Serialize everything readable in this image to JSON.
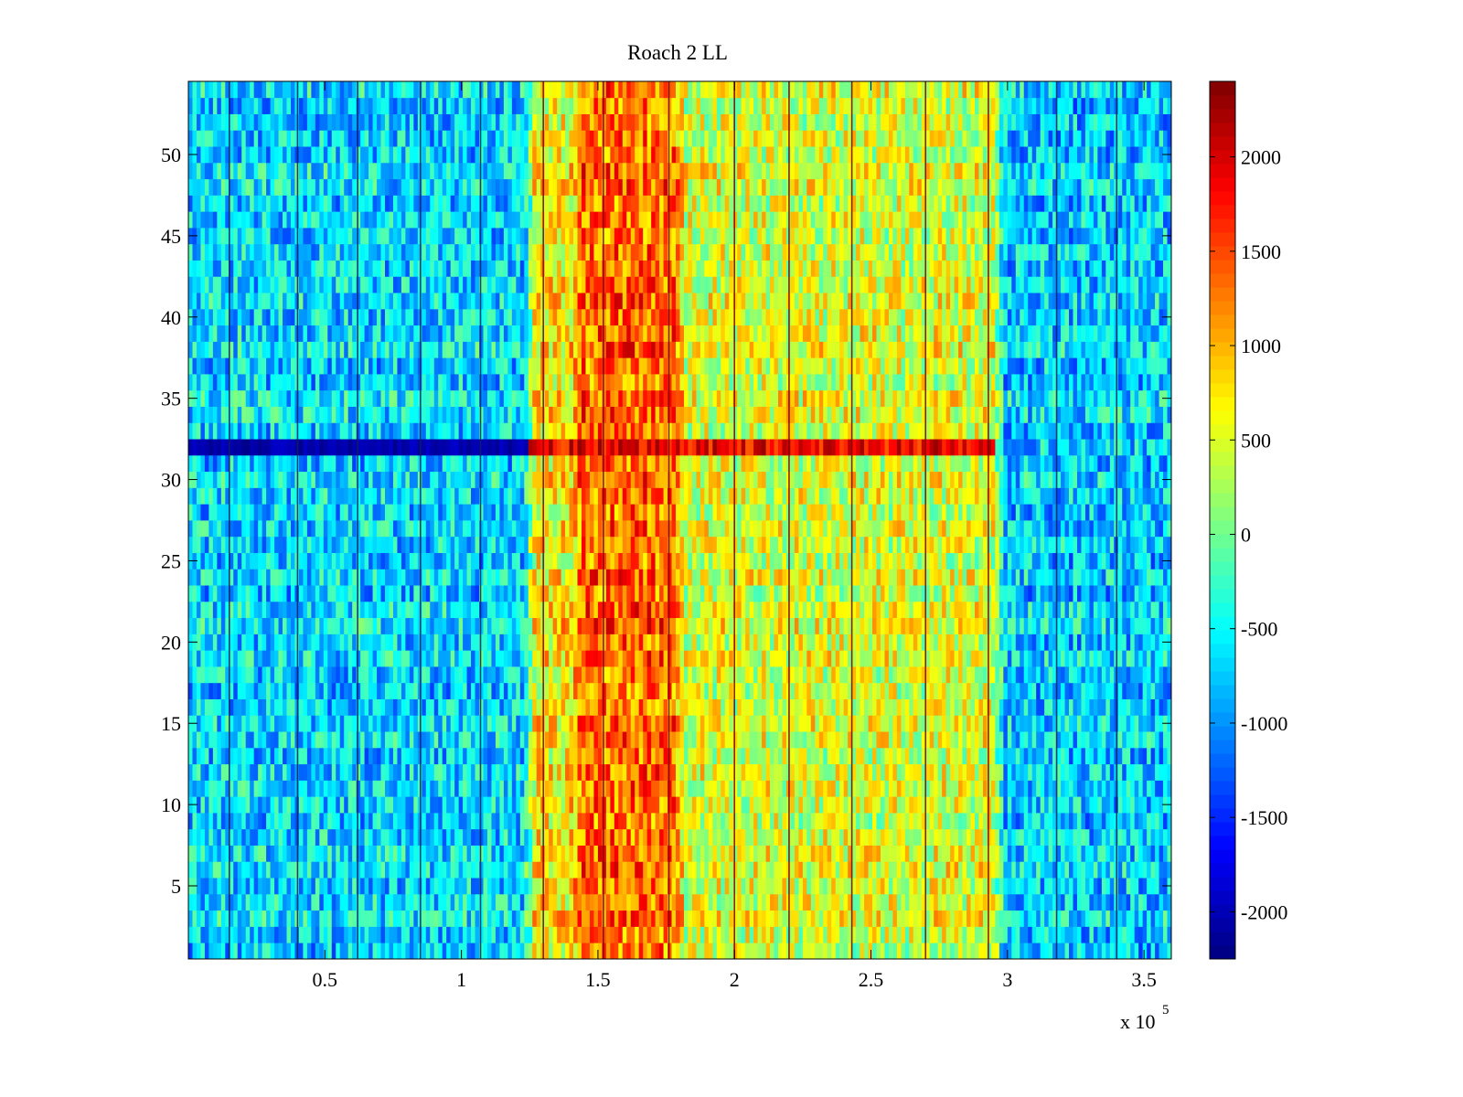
{
  "chart_data": {
    "type": "heatmap",
    "title": "Roach 2 LL",
    "xlabel": "",
    "ylabel": "",
    "x_exponent_label": {
      "base": "x 10",
      "exponent": "5"
    },
    "xlim": [
      0,
      3.6
    ],
    "ylim": [
      0.5,
      54.5
    ],
    "x_ticks": [
      0.5,
      1,
      1.5,
      2,
      2.5,
      3,
      3.5
    ],
    "x_tick_labels": [
      "0.5",
      "1",
      "1.5",
      "2",
      "2.5",
      "3",
      "3.5"
    ],
    "y_ticks": [
      5,
      10,
      15,
      20,
      25,
      30,
      35,
      40,
      45,
      50
    ],
    "y_tick_labels": [
      "5",
      "10",
      "15",
      "20",
      "25",
      "30",
      "35",
      "40",
      "45",
      "50"
    ],
    "rows": 54,
    "grid": false,
    "colormap": "jet",
    "clim": [
      -2250,
      2400
    ],
    "colorbar": {
      "placement": "right",
      "ticks": [
        -2000,
        -1500,
        -1000,
        -500,
        0,
        500,
        1000,
        1500,
        2000
      ],
      "tick_labels": [
        "-2000",
        "-1500",
        "-1000",
        "-500",
        "0",
        "500",
        "1000",
        "1500",
        "2000"
      ]
    },
    "column_band_profile": [
      {
        "x_start": 0,
        "x_end": 1.23,
        "mean_value": -650,
        "description": "cool region"
      },
      {
        "x_start": 1.23,
        "x_end": 1.4,
        "mean_value": 700
      },
      {
        "x_start": 1.4,
        "x_end": 1.78,
        "mean_value": 1350,
        "description": "hot region"
      },
      {
        "x_start": 1.78,
        "x_end": 2.95,
        "mean_value": 500
      },
      {
        "x_start": 2.95,
        "x_end": 3.6,
        "mean_value": -700
      }
    ],
    "row_anomalies": [
      {
        "row": 32,
        "value_left": -2200,
        "value_right": 2300,
        "switch_x": 1.25,
        "end_x": 2.95
      }
    ],
    "vertical_line_x": [
      0.15,
      0.4,
      0.62,
      0.85,
      1.07,
      1.3,
      1.52,
      1.76,
      2.0,
      2.2,
      2.43,
      2.7,
      2.93,
      3.18,
      3.4
    ]
  }
}
